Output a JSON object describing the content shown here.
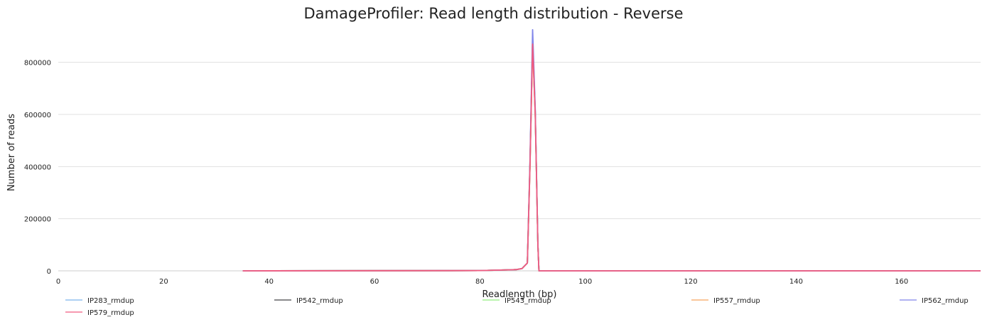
{
  "chart_data": {
    "type": "line",
    "title": "DamageProfiler: Read length distribution - Reverse",
    "xlabel": "Readlength (bp)",
    "ylabel": "Number of reads",
    "xlim": [
      0,
      175
    ],
    "ylim": [
      0,
      930000
    ],
    "x_ticks": [
      0,
      20,
      40,
      60,
      80,
      100,
      120,
      140,
      160
    ],
    "y_ticks": [
      0,
      200000,
      400000,
      600000,
      800000
    ],
    "grid": "horizontal",
    "legend_position": "bottom",
    "series": [
      {
        "name": "IP283_rmdup",
        "color": "#7cb5ec",
        "points": [
          [
            35,
            0
          ],
          [
            80,
            1000
          ],
          [
            82,
            2000
          ],
          [
            84,
            3000
          ],
          [
            86,
            4000
          ],
          [
            87,
            5000
          ],
          [
            88,
            9000
          ],
          [
            89,
            30000
          ],
          [
            89.5,
            400000
          ],
          [
            90,
            880000
          ],
          [
            90.5,
            600000
          ],
          [
            91,
            100000
          ],
          [
            91.2,
            0
          ],
          [
            175,
            0
          ]
        ]
      },
      {
        "name": "IP542_rmdup",
        "color": "#434348",
        "points": [
          [
            35,
            0
          ],
          [
            80,
            1000
          ],
          [
            82,
            2000
          ],
          [
            84,
            3000
          ],
          [
            86,
            4000
          ],
          [
            87,
            5000
          ],
          [
            88,
            9000
          ],
          [
            89,
            30000
          ],
          [
            89.5,
            410000
          ],
          [
            90,
            890000
          ],
          [
            90.5,
            610000
          ],
          [
            91,
            100000
          ],
          [
            91.2,
            0
          ],
          [
            175,
            0
          ]
        ]
      },
      {
        "name": "IP543_rmdup",
        "color": "#90ed7d",
        "points": [
          [
            35,
            0
          ],
          [
            80,
            1000
          ],
          [
            82,
            2000
          ],
          [
            84,
            3000
          ],
          [
            86,
            4000
          ],
          [
            87,
            5000
          ],
          [
            88,
            9000
          ],
          [
            89,
            30000
          ],
          [
            89.5,
            400000
          ],
          [
            90,
            870000
          ],
          [
            90.5,
            600000
          ],
          [
            91,
            100000
          ],
          [
            91.2,
            0
          ],
          [
            175,
            0
          ]
        ]
      },
      {
        "name": "IP557_rmdup",
        "color": "#f7a35c",
        "points": [
          [
            35,
            0
          ],
          [
            80,
            1000
          ],
          [
            82,
            2000
          ],
          [
            84,
            3000
          ],
          [
            86,
            4000
          ],
          [
            87,
            5000
          ],
          [
            88,
            9000
          ],
          [
            89,
            30000
          ],
          [
            89.5,
            400000
          ],
          [
            90,
            875000
          ],
          [
            90.5,
            600000
          ],
          [
            91,
            100000
          ],
          [
            91.2,
            0
          ],
          [
            175,
            0
          ]
        ]
      },
      {
        "name": "IP562_rmdup",
        "color": "#8085e9",
        "points": [
          [
            35,
            0
          ],
          [
            80,
            1000
          ],
          [
            82,
            2000
          ],
          [
            84,
            3000
          ],
          [
            86,
            4000
          ],
          [
            87,
            5000
          ],
          [
            88,
            9000
          ],
          [
            89,
            30000
          ],
          [
            89.5,
            420000
          ],
          [
            90,
            925000
          ],
          [
            90.5,
            620000
          ],
          [
            91,
            100000
          ],
          [
            91.2,
            0
          ],
          [
            175,
            0
          ]
        ]
      },
      {
        "name": "IP579_rmdup",
        "color": "#f15c80",
        "points": [
          [
            35,
            0
          ],
          [
            80,
            1000
          ],
          [
            82,
            2000
          ],
          [
            84,
            3000
          ],
          [
            86,
            4000
          ],
          [
            87,
            5000
          ],
          [
            88,
            9000
          ],
          [
            89,
            30000
          ],
          [
            89.5,
            400000
          ],
          [
            90,
            870000
          ],
          [
            90.5,
            600000
          ],
          [
            91,
            100000
          ],
          [
            91.2,
            0
          ],
          [
            175,
            0
          ]
        ]
      }
    ]
  }
}
